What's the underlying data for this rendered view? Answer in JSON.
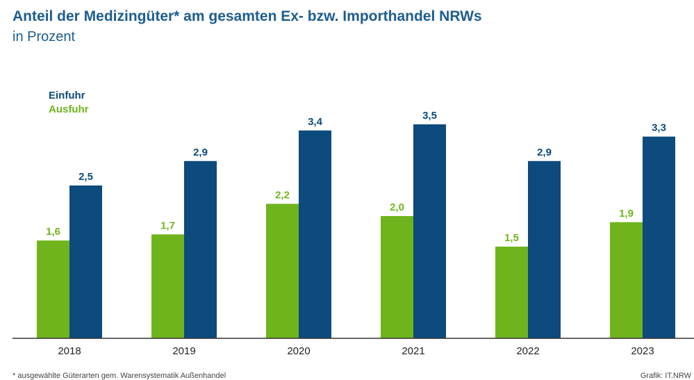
{
  "colors": {
    "einfuhr": "#0d4a7d",
    "ausfuhr": "#6fb41d",
    "title": "#1d5d8f",
    "axis": "#333333"
  },
  "header": {
    "title": "Anteil der Medizingüter* am gesamten Ex- bzw. Importhandel NRWs",
    "subtitle": "in Prozent"
  },
  "footer": {
    "note": "* ausgewählte Güterarten gem. Warensystematik Außenhandel",
    "source": "Grafik: IT.NRW"
  },
  "chart_data": {
    "type": "bar",
    "categories": [
      "2018",
      "2019",
      "2020",
      "2021",
      "2022",
      "2023"
    ],
    "series": [
      {
        "name": "Ausfuhr",
        "values": [
          1.6,
          1.7,
          2.2,
          2.0,
          1.5,
          1.9
        ],
        "labels": [
          "1,6",
          "1,7",
          "2,2",
          "2,0",
          "1,5",
          "1,9"
        ]
      },
      {
        "name": "Einfuhr",
        "values": [
          2.5,
          2.9,
          3.4,
          3.5,
          2.9,
          3.3
        ],
        "labels": [
          "2,5",
          "2,9",
          "3,4",
          "3,5",
          "2,9",
          "3,3"
        ]
      }
    ],
    "legend": [
      "Einfuhr",
      "Ausfuhr"
    ],
    "legend_position": "top-left",
    "ylim": [
      0,
      3.5
    ],
    "grid": false
  }
}
